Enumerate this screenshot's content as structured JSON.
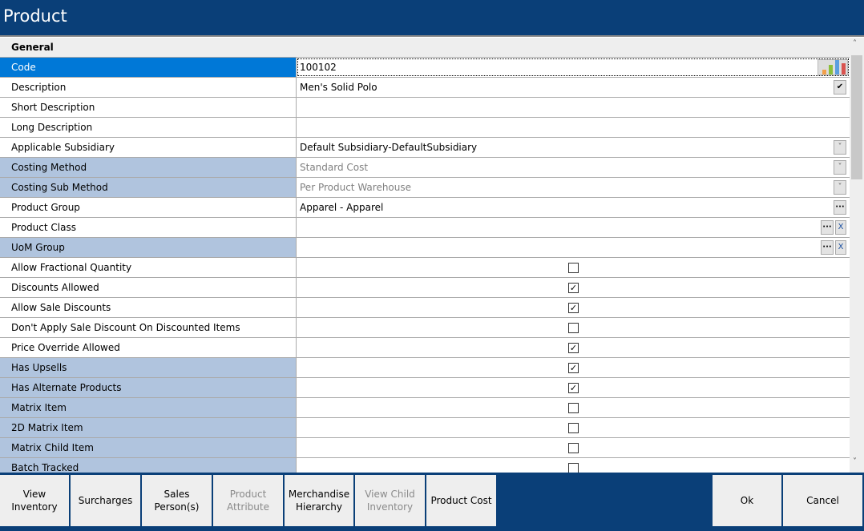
{
  "title": "Product",
  "section": "General",
  "rows": [
    {
      "label": "Code",
      "value": "100102",
      "style": "sel",
      "type": "text",
      "extra": "chart"
    },
    {
      "label": "Description",
      "value": "Men's Solid Polo",
      "type": "text",
      "extra": "check"
    },
    {
      "label": "Short Description",
      "value": "",
      "type": "text"
    },
    {
      "label": "Long Description",
      "value": "",
      "type": "text"
    },
    {
      "label": "Applicable Subsidiary",
      "value": "Default Subsidiary-DefaultSubsidiary",
      "type": "text",
      "extra": "dropdown"
    },
    {
      "label": "Costing Method",
      "value": "Standard Cost",
      "style": "ro",
      "type": "text",
      "disabled": true,
      "extra": "dropdown"
    },
    {
      "label": "Costing Sub Method",
      "value": "Per Product Warehouse",
      "style": "ro",
      "type": "text",
      "disabled": true,
      "extra": "dropdown"
    },
    {
      "label": "Product Group",
      "value": "Apparel - Apparel",
      "type": "text",
      "extra": "ellipsis"
    },
    {
      "label": "Product Class",
      "value": "",
      "type": "text",
      "extra": "ellipsis-clear"
    },
    {
      "label": "UoM Group",
      "value": "",
      "style": "ro",
      "type": "text",
      "extra": "ellipsis-clear"
    },
    {
      "label": "Allow Fractional Quantity",
      "checked": false,
      "type": "check"
    },
    {
      "label": "Discounts Allowed",
      "checked": true,
      "type": "check"
    },
    {
      "label": "Allow Sale Discounts",
      "checked": true,
      "type": "check"
    },
    {
      "label": "Don't Apply Sale Discount On Discounted Items",
      "checked": false,
      "type": "check"
    },
    {
      "label": "Price Override Allowed",
      "checked": true,
      "type": "check"
    },
    {
      "label": "Has Upsells",
      "checked": true,
      "style": "ro",
      "type": "check"
    },
    {
      "label": "Has Alternate Products",
      "checked": true,
      "style": "ro",
      "type": "check"
    },
    {
      "label": "Matrix Item",
      "checked": false,
      "style": "ro",
      "type": "check"
    },
    {
      "label": "2D Matrix Item",
      "checked": false,
      "style": "ro",
      "type": "check"
    },
    {
      "label": "Matrix Child Item",
      "checked": false,
      "style": "ro",
      "type": "check"
    },
    {
      "label": "Batch Tracked",
      "checked": false,
      "style": "ro",
      "type": "check"
    }
  ],
  "buttons": [
    {
      "label": "View Inventory",
      "enabled": true
    },
    {
      "label": "Surcharges",
      "enabled": true
    },
    {
      "label": "Sales Person(s)",
      "enabled": true
    },
    {
      "label": "Product Attribute",
      "enabled": false
    },
    {
      "label": "Merchandise Hierarchy",
      "enabled": true
    },
    {
      "label": "View Child Inventory",
      "enabled": false
    },
    {
      "label": "Product Cost",
      "enabled": true
    }
  ],
  "ok_label": "Ok",
  "cancel_label": "Cancel",
  "colors": {
    "titlebar": "#0a3f78",
    "selected": "#0078d7",
    "readonly_label": "#b0c4de"
  }
}
